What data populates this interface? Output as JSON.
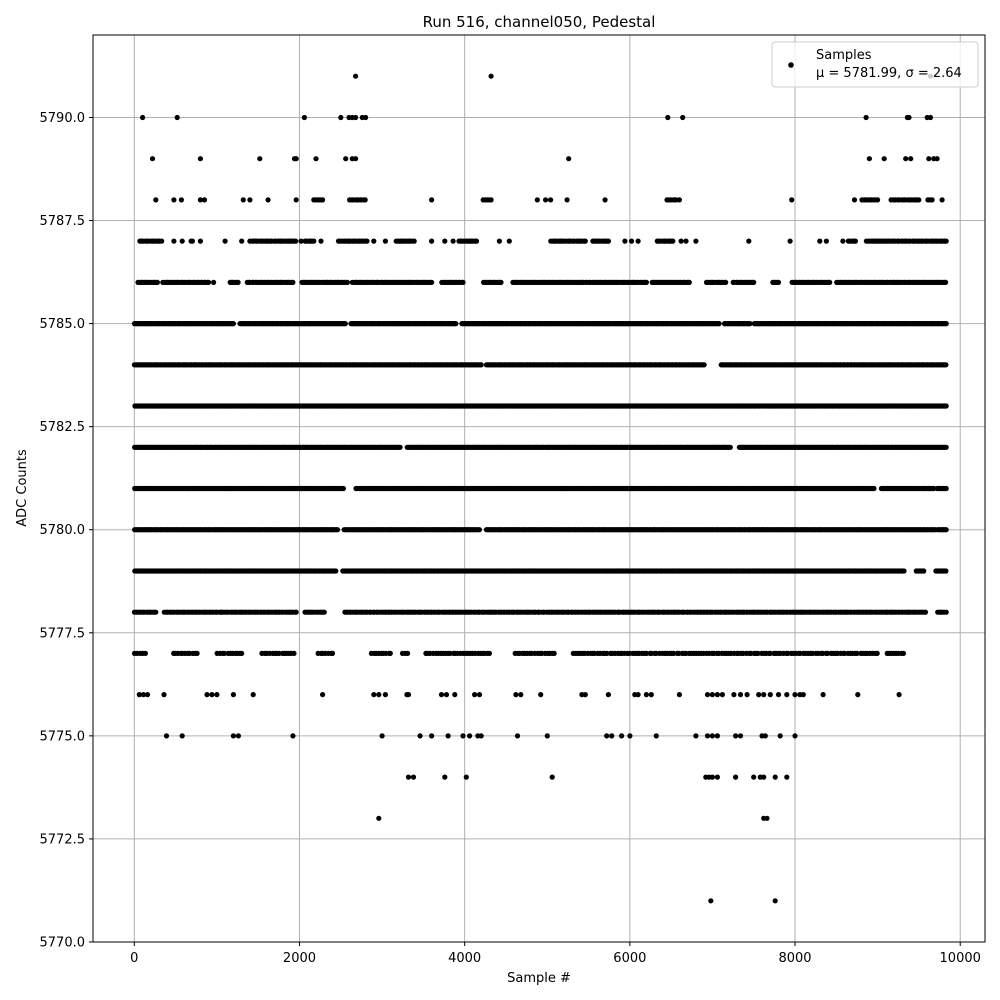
{
  "chart_data": {
    "type": "scatter",
    "title": "Run 516, channel050, Pedestal",
    "xlabel": "Sample #",
    "ylabel": "ADC Counts",
    "xlim": [
      -500,
      10300
    ],
    "ylim": [
      5770.0,
      5792.0
    ],
    "xticks": [
      0,
      2000,
      4000,
      6000,
      8000,
      10000
    ],
    "yticks": [
      5770.0,
      5772.5,
      5775.0,
      5777.5,
      5780.0,
      5782.5,
      5785.0,
      5787.5,
      5790.0
    ],
    "xtick_labels": [
      "0",
      "2000",
      "4000",
      "6000",
      "8000",
      "10000"
    ],
    "ytick_labels": [
      "5770.0",
      "5772.5",
      "5775.0",
      "5777.5",
      "5780.0",
      "5782.5",
      "5785.0",
      "5787.5",
      "5790.0"
    ],
    "grid": true,
    "legend_position": "top-right",
    "marker_color": "#000000",
    "series": [
      {
        "name": "Samples",
        "legend_line1": "Samples",
        "legend_line2": "μ = 5781.99, σ = 2.64",
        "mean": 5781.99,
        "sigma": 2.64,
        "dense_levels": [
          {
            "y": 5777.0,
            "x_ranges": [
              [
                0,
                140
              ],
              [
                460,
                760
              ],
              [
                1000,
                1300
              ],
              [
                1540,
                1940
              ],
              [
                2220,
                2400
              ],
              [
                2860,
                3100
              ],
              [
                3240,
                3320
              ],
              [
                3520,
                4300
              ],
              [
                4600,
                5100
              ],
              [
                5300,
                9000
              ],
              [
                9100,
                9320
              ]
            ],
            "step": 30
          },
          {
            "y": 5778.0,
            "x_ranges": [
              [
                0,
                260
              ],
              [
                360,
                1960
              ],
              [
                2060,
                2300
              ],
              [
                2540,
                9580
              ],
              [
                9720,
                9830
              ]
            ],
            "step": 20
          },
          {
            "y": 5779.0,
            "x_ranges": [
              [
                0,
                2440
              ],
              [
                2520,
                9320
              ],
              [
                9460,
                9560
              ],
              [
                9700,
                9830
              ]
            ],
            "step": 12
          },
          {
            "y": 5780.0,
            "x_ranges": [
              [
                0,
                2460
              ],
              [
                2540,
                4180
              ],
              [
                4260,
                9700
              ],
              [
                9720,
                9830
              ]
            ],
            "step": 12
          },
          {
            "y": 5781.0,
            "x_ranges": [
              [
                0,
                2540
              ],
              [
                2680,
                8960
              ],
              [
                9040,
                9680
              ],
              [
                9720,
                9830
              ]
            ],
            "step": 12
          },
          {
            "y": 5782.0,
            "x_ranges": [
              [
                0,
                3220
              ],
              [
                3300,
                7220
              ],
              [
                7320,
                9830
              ]
            ],
            "step": 12
          },
          {
            "y": 5783.0,
            "x_ranges": [
              [
                0,
                9830
              ]
            ],
            "step": 12
          },
          {
            "y": 5784.0,
            "x_ranges": [
              [
                0,
                4200
              ],
              [
                4260,
                6900
              ],
              [
                7100,
                9830
              ]
            ],
            "step": 12
          },
          {
            "y": 5785.0,
            "x_ranges": [
              [
                0,
                1200
              ],
              [
                1280,
                2560
              ],
              [
                2620,
                3900
              ],
              [
                3960,
                7080
              ],
              [
                7140,
                7460
              ],
              [
                7500,
                9830
              ]
            ],
            "step": 12
          },
          {
            "y": 5786.0,
            "x_ranges": [
              [
                40,
                280
              ],
              [
                340,
                900
              ],
              [
                1150,
                1260
              ],
              [
                1360,
                1920
              ],
              [
                2020,
                2580
              ],
              [
                2640,
                3600
              ],
              [
                3720,
                3980
              ],
              [
                4220,
                4440
              ],
              [
                4580,
                6200
              ],
              [
                6260,
                6720
              ],
              [
                6920,
                7160
              ],
              [
                7240,
                7500
              ],
              [
                7720,
                7800
              ],
              [
                7960,
                8420
              ],
              [
                8500,
                9830
              ]
            ],
            "step": 20
          },
          {
            "y": 5787.0,
            "x_ranges": [
              [
                60,
                340
              ],
              [
                680,
                720
              ],
              [
                1400,
                1960
              ],
              [
                2060,
                2180
              ],
              [
                2460,
                2820
              ],
              [
                3160,
                3400
              ],
              [
                3920,
                4160
              ],
              [
                5040,
                5460
              ],
              [
                5540,
                5740
              ],
              [
                6320,
                6520
              ],
              [
                8640,
                8740
              ],
              [
                8860,
                9830
              ]
            ],
            "step": 22
          },
          {
            "y": 5788.0,
            "x_ranges": [
              [
                2160,
                2280
              ],
              [
                2600,
                2800
              ],
              [
                4220,
                4320
              ],
              [
                6440,
                6560
              ],
              [
                8800,
                9000
              ],
              [
                9160,
                9500
              ],
              [
                9600,
                9660
              ]
            ],
            "step": 24
          }
        ],
        "sparse_points": [
          [
            140,
            5786.0
          ],
          [
            480,
            5787.0
          ],
          [
            580,
            5787.0
          ],
          [
            800,
            5787.0
          ],
          [
            960,
            5786.0
          ],
          [
            1100,
            5787.0
          ],
          [
            1300,
            5787.0
          ],
          [
            2020,
            5787.0
          ],
          [
            2260,
            5787.0
          ],
          [
            2900,
            5787.0
          ],
          [
            3040,
            5787.0
          ],
          [
            3600,
            5787.0
          ],
          [
            3760,
            5787.0
          ],
          [
            3860,
            5787.0
          ],
          [
            4060,
            5787.0
          ],
          [
            4420,
            5787.0
          ],
          [
            4540,
            5787.0
          ],
          [
            5940,
            5787.0
          ],
          [
            6020,
            5787.0
          ],
          [
            6100,
            5787.0
          ],
          [
            6620,
            5787.0
          ],
          [
            6680,
            5787.0
          ],
          [
            6800,
            5787.0
          ],
          [
            7440,
            5787.0
          ],
          [
            7940,
            5787.0
          ],
          [
            8300,
            5787.0
          ],
          [
            8380,
            5787.0
          ],
          [
            8580,
            5787.0
          ],
          [
            260,
            5788.0
          ],
          [
            480,
            5788.0
          ],
          [
            570,
            5788.0
          ],
          [
            800,
            5788.0
          ],
          [
            850,
            5788.0
          ],
          [
            1320,
            5788.0
          ],
          [
            1400,
            5788.0
          ],
          [
            1620,
            5788.0
          ],
          [
            1960,
            5788.0
          ],
          [
            3600,
            5788.0
          ],
          [
            4880,
            5788.0
          ],
          [
            4980,
            5788.0
          ],
          [
            5040,
            5788.0
          ],
          [
            5240,
            5788.0
          ],
          [
            5700,
            5788.0
          ],
          [
            6600,
            5788.0
          ],
          [
            7960,
            5788.0
          ],
          [
            8720,
            5788.0
          ],
          [
            9780,
            5788.0
          ],
          [
            220,
            5789.0
          ],
          [
            800,
            5789.0
          ],
          [
            1520,
            5789.0
          ],
          [
            1940,
            5789.0
          ],
          [
            1960,
            5789.0
          ],
          [
            2200,
            5789.0
          ],
          [
            2560,
            5789.0
          ],
          [
            2640,
            5789.0
          ],
          [
            2680,
            5789.0
          ],
          [
            5260,
            5789.0
          ],
          [
            8900,
            5789.0
          ],
          [
            9080,
            5789.0
          ],
          [
            9340,
            5789.0
          ],
          [
            9400,
            5789.0
          ],
          [
            9620,
            5789.0
          ],
          [
            9680,
            5789.0
          ],
          [
            9720,
            5789.0
          ],
          [
            100,
            5790.0
          ],
          [
            520,
            5790.0
          ],
          [
            2060,
            5790.0
          ],
          [
            2500,
            5790.0
          ],
          [
            2600,
            5790.0
          ],
          [
            2640,
            5790.0
          ],
          [
            2680,
            5790.0
          ],
          [
            2760,
            5790.0
          ],
          [
            2800,
            5790.0
          ],
          [
            6460,
            5790.0
          ],
          [
            6640,
            5790.0
          ],
          [
            8860,
            5790.0
          ],
          [
            9360,
            5790.0
          ],
          [
            9380,
            5790.0
          ],
          [
            9600,
            5790.0
          ],
          [
            9640,
            5790.0
          ],
          [
            2680,
            5791.0
          ],
          [
            4320,
            5791.0
          ],
          [
            9640,
            5791.0
          ],
          [
            60,
            5776.0
          ],
          [
            110,
            5776.0
          ],
          [
            160,
            5776.0
          ],
          [
            360,
            5776.0
          ],
          [
            880,
            5776.0
          ],
          [
            940,
            5776.0
          ],
          [
            1000,
            5776.0
          ],
          [
            1200,
            5776.0
          ],
          [
            1440,
            5776.0
          ],
          [
            2280,
            5776.0
          ],
          [
            2900,
            5776.0
          ],
          [
            2960,
            5776.0
          ],
          [
            3040,
            5776.0
          ],
          [
            3300,
            5776.0
          ],
          [
            3320,
            5776.0
          ],
          [
            3720,
            5776.0
          ],
          [
            3780,
            5776.0
          ],
          [
            3880,
            5776.0
          ],
          [
            4120,
            5776.0
          ],
          [
            4180,
            5776.0
          ],
          [
            4620,
            5776.0
          ],
          [
            4680,
            5776.0
          ],
          [
            4920,
            5776.0
          ],
          [
            5420,
            5776.0
          ],
          [
            5460,
            5776.0
          ],
          [
            5740,
            5776.0
          ],
          [
            6060,
            5776.0
          ],
          [
            6100,
            5776.0
          ],
          [
            6200,
            5776.0
          ],
          [
            6260,
            5776.0
          ],
          [
            6600,
            5776.0
          ],
          [
            6940,
            5776.0
          ],
          [
            7000,
            5776.0
          ],
          [
            7060,
            5776.0
          ],
          [
            7120,
            5776.0
          ],
          [
            7260,
            5776.0
          ],
          [
            7340,
            5776.0
          ],
          [
            7420,
            5776.0
          ],
          [
            7560,
            5776.0
          ],
          [
            7620,
            5776.0
          ],
          [
            7700,
            5776.0
          ],
          [
            7800,
            5776.0
          ],
          [
            7900,
            5776.0
          ],
          [
            8000,
            5776.0
          ],
          [
            8060,
            5776.0
          ],
          [
            8100,
            5776.0
          ],
          [
            8340,
            5776.0
          ],
          [
            8760,
            5776.0
          ],
          [
            9260,
            5776.0
          ],
          [
            390,
            5775.0
          ],
          [
            580,
            5775.0
          ],
          [
            1200,
            5775.0
          ],
          [
            1260,
            5775.0
          ],
          [
            1920,
            5775.0
          ],
          [
            3000,
            5775.0
          ],
          [
            3460,
            5775.0
          ],
          [
            3600,
            5775.0
          ],
          [
            3800,
            5775.0
          ],
          [
            3980,
            5775.0
          ],
          [
            4060,
            5775.0
          ],
          [
            4160,
            5775.0
          ],
          [
            4200,
            5775.0
          ],
          [
            4640,
            5775.0
          ],
          [
            5000,
            5775.0
          ],
          [
            5720,
            5775.0
          ],
          [
            5780,
            5775.0
          ],
          [
            5900,
            5775.0
          ],
          [
            6000,
            5775.0
          ],
          [
            6320,
            5775.0
          ],
          [
            6800,
            5775.0
          ],
          [
            6940,
            5775.0
          ],
          [
            7000,
            5775.0
          ],
          [
            7060,
            5775.0
          ],
          [
            7280,
            5775.0
          ],
          [
            7340,
            5775.0
          ],
          [
            7600,
            5775.0
          ],
          [
            7640,
            5775.0
          ],
          [
            7820,
            5775.0
          ],
          [
            8000,
            5775.0
          ],
          [
            3320,
            5774.0
          ],
          [
            3380,
            5774.0
          ],
          [
            3760,
            5774.0
          ],
          [
            4020,
            5774.0
          ],
          [
            5060,
            5774.0
          ],
          [
            6920,
            5774.0
          ],
          [
            6960,
            5774.0
          ],
          [
            7000,
            5774.0
          ],
          [
            7060,
            5774.0
          ],
          [
            7280,
            5774.0
          ],
          [
            7500,
            5774.0
          ],
          [
            7580,
            5774.0
          ],
          [
            7620,
            5774.0
          ],
          [
            7760,
            5774.0
          ],
          [
            7900,
            5774.0
          ],
          [
            2960,
            5773.0
          ],
          [
            7620,
            5773.0
          ],
          [
            7660,
            5773.0
          ],
          [
            6980,
            5771.0
          ],
          [
            7760,
            5771.0
          ]
        ]
      }
    ]
  }
}
